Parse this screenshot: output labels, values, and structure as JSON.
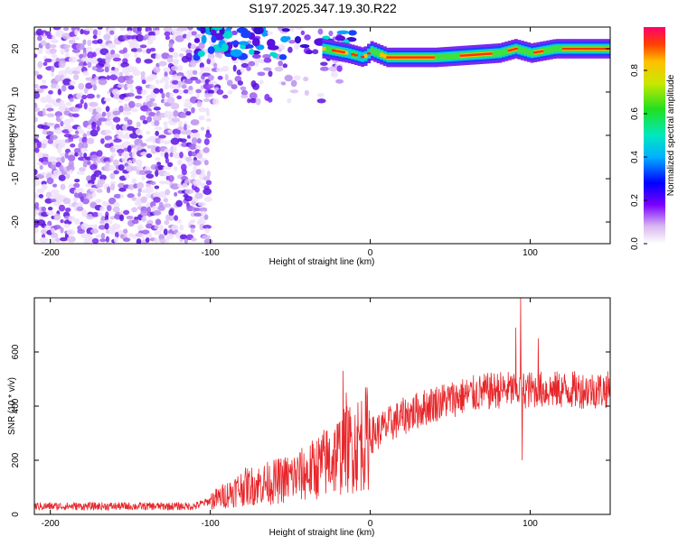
{
  "title": "S197.2025.347.19.30.R22",
  "chart_data": [
    {
      "type": "heatmap",
      "xlabel": "Height of straight line (km)",
      "ylabel": "Frequency (Hz)",
      "xlim": [
        -210,
        150
      ],
      "ylim": [
        -25,
        25
      ],
      "x_ticks": [
        -200,
        -100,
        0,
        100
      ],
      "y_ticks": [
        -20,
        -10,
        0,
        10,
        20
      ],
      "colorbar": {
        "label": "Normalized spectral amplitude",
        "range": [
          0,
          1
        ],
        "ticks": [
          "0.0",
          "0.2",
          "0.4",
          "0.6",
          "0.8"
        ]
      },
      "ridge": [
        {
          "x": -90,
          "y": 20.5
        },
        {
          "x": -60,
          "y": 21
        },
        {
          "x": -30,
          "y": 20
        },
        {
          "x": -15,
          "y": 19
        },
        {
          "x": -5,
          "y": 18
        },
        {
          "x": 0,
          "y": 19.5
        },
        {
          "x": 10,
          "y": 18
        },
        {
          "x": 40,
          "y": 18
        },
        {
          "x": 60,
          "y": 18.5
        },
        {
          "x": 80,
          "y": 19
        },
        {
          "x": 90,
          "y": 20
        },
        {
          "x": 100,
          "y": 19
        },
        {
          "x": 115,
          "y": 20
        },
        {
          "x": 150,
          "y": 20
        }
      ]
    },
    {
      "type": "line",
      "xlabel": "Height of straight line (km)",
      "ylabel": "SNR (10 * v/v)",
      "xlim": [
        -210,
        150
      ],
      "ylim": [
        0,
        800
      ],
      "x_ticks": [
        -200,
        -100,
        0,
        100
      ],
      "y_ticks": [
        0,
        200,
        400,
        600
      ],
      "series_color": "#e8262a",
      "envelope": [
        {
          "x": -210,
          "y": 30
        },
        {
          "x": -110,
          "y": 30
        },
        {
          "x": -95,
          "y": 60
        },
        {
          "x": -80,
          "y": 100
        },
        {
          "x": -60,
          "y": 120
        },
        {
          "x": -40,
          "y": 150
        },
        {
          "x": -20,
          "y": 220
        },
        {
          "x": 0,
          "y": 290
        },
        {
          "x": 20,
          "y": 360
        },
        {
          "x": 40,
          "y": 410
        },
        {
          "x": 60,
          "y": 440
        },
        {
          "x": 80,
          "y": 460
        },
        {
          "x": 100,
          "y": 460
        },
        {
          "x": 120,
          "y": 460
        },
        {
          "x": 150,
          "y": 460
        }
      ],
      "spikes": [
        {
          "x": -17,
          "y": 530
        },
        {
          "x": -15,
          "y": 450
        },
        {
          "x": 94,
          "y": 800
        },
        {
          "x": 95,
          "y": 200
        },
        {
          "x": 91,
          "y": 690
        },
        {
          "x": 105,
          "y": 650
        }
      ]
    }
  ]
}
